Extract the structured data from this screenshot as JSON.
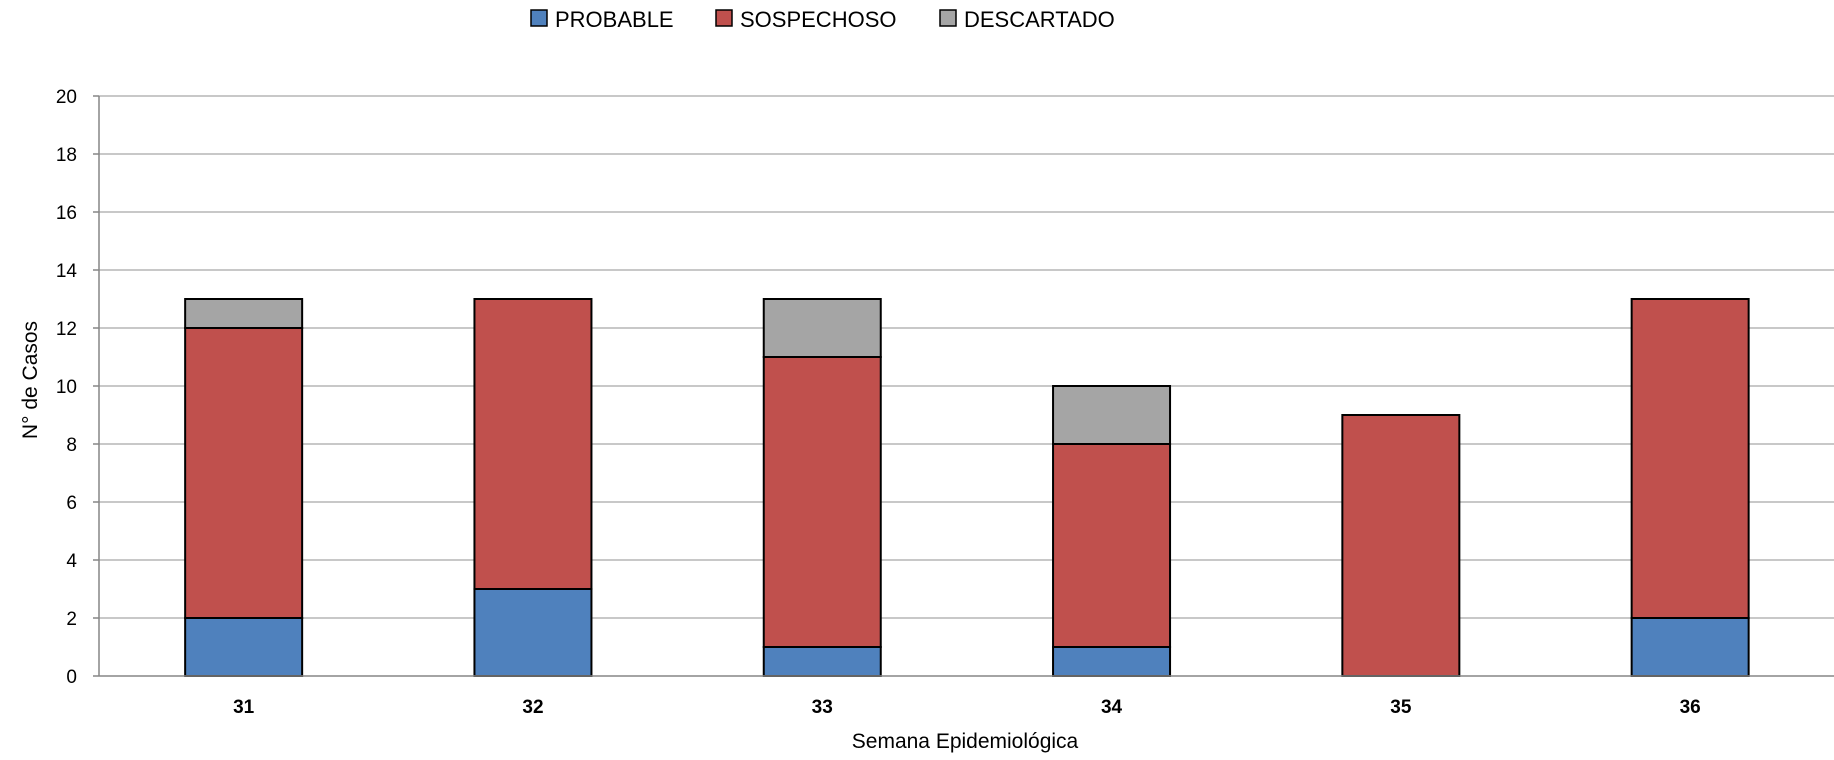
{
  "chart_data": {
    "type": "bar",
    "stacked": true,
    "categories": [
      "31",
      "32",
      "33",
      "34",
      "35",
      "36"
    ],
    "series": [
      {
        "name": "PROBABLE",
        "color": "#4f81bd",
        "values": [
          2,
          3,
          1,
          1,
          0,
          2
        ]
      },
      {
        "name": "SOSPECHOSO",
        "color": "#c0504d",
        "values": [
          10,
          10,
          10,
          7,
          9,
          11
        ]
      },
      {
        "name": "DESCARTADO",
        "color": "#a5a5a5",
        "values": [
          1,
          0,
          2,
          2,
          0,
          0
        ]
      }
    ],
    "xlabel": "Semana Epidemiológica",
    "ylabel": "N° de Casos",
    "ylim": [
      0,
      20
    ],
    "yticks": [
      0,
      2,
      4,
      6,
      8,
      10,
      12,
      14,
      16,
      18,
      20
    ],
    "grid": true,
    "legend_position": "top"
  }
}
